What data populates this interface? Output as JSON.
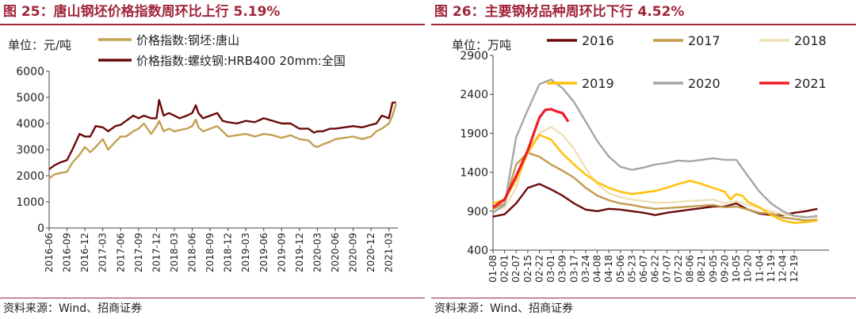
{
  "left_panel": {
    "title": "图 25：唐山钢坯价格指数周环比上行 5.19%",
    "source": "资料来源：Wind、招商证券"
  },
  "right_panel": {
    "title": "图 26：主要钢材品种周环比下行 4.52%",
    "source": "资料来源：Wind、招商证券"
  },
  "colors": {
    "title_red": "#a0263a",
    "billet": "#c3a052",
    "rebar": "#6b0a0a",
    "y2016": "#6b0a0a",
    "y2017": "#c39a4e",
    "y2018": "#efe0b6",
    "y2019": "#ffc20e",
    "y2020": "#a6a6a6",
    "y2021": "#ee1c25"
  },
  "chart_data": [
    {
      "type": "line",
      "unit_label": "单位：元/吨",
      "ylim": [
        0,
        6000
      ],
      "yticks": [
        "0",
        "1000",
        "2000",
        "3000",
        "4000",
        "5000",
        "6000"
      ],
      "xticks": [
        "2016-06",
        "2016-09",
        "2016-12",
        "2017-03",
        "2017-06",
        "2017-09",
        "2017-12",
        "2018-03",
        "2018-06",
        "2018-09",
        "2018-12",
        "2019-03",
        "2019-06",
        "2019-09",
        "2019-12",
        "2020-03",
        "2020-06",
        "2020-09",
        "2020-12",
        "2021-03"
      ],
      "x_range": [
        0,
        19.5
      ],
      "series": [
        {
          "name": "价格指数:钢坯:唐山",
          "color": "#c3a052",
          "x": [
            0,
            0.3,
            0.6,
            1,
            1.3,
            1.7,
            2,
            2.3,
            2.6,
            3,
            3.3,
            3.7,
            4,
            4.3,
            4.7,
            5,
            5.3,
            5.7,
            6,
            6.15,
            6.4,
            6.7,
            7,
            7.3,
            7.7,
            8,
            8.2,
            8.35,
            8.6,
            9,
            9.4,
            9.7,
            10,
            10.5,
            11,
            11.5,
            12,
            12.5,
            13,
            13.5,
            14,
            14.5,
            14.8,
            15,
            15.3,
            15.7,
            16,
            16.5,
            17,
            17.5,
            18,
            18.3,
            18.6,
            19,
            19.2,
            19.4
          ],
          "values": [
            1900,
            2050,
            2100,
            2150,
            2500,
            2800,
            3100,
            2900,
            3100,
            3400,
            3000,
            3300,
            3500,
            3500,
            3700,
            3800,
            4000,
            3600,
            3900,
            4100,
            3700,
            3800,
            3700,
            3750,
            3800,
            3900,
            4150,
            3850,
            3700,
            3800,
            3900,
            3700,
            3500,
            3550,
            3600,
            3500,
            3600,
            3550,
            3450,
            3550,
            3400,
            3350,
            3150,
            3100,
            3200,
            3300,
            3400,
            3450,
            3500,
            3400,
            3500,
            3700,
            3800,
            4000,
            4300,
            4750
          ]
        },
        {
          "name": "价格指数:螺纹钢:HRB400 20mm:全国",
          "color": "#6b0a0a",
          "x": [
            0,
            0.3,
            0.6,
            1,
            1.3,
            1.7,
            2,
            2.3,
            2.6,
            3,
            3.3,
            3.7,
            4,
            4.3,
            4.7,
            5,
            5.3,
            5.7,
            6,
            6.15,
            6.4,
            6.7,
            7,
            7.3,
            7.7,
            8,
            8.2,
            8.35,
            8.6,
            9,
            9.4,
            9.7,
            10,
            10.5,
            11,
            11.5,
            12,
            12.5,
            13,
            13.5,
            14,
            14.5,
            14.8,
            15,
            15.3,
            15.7,
            16,
            16.5,
            17,
            17.5,
            18,
            18.3,
            18.6,
            19,
            19.2,
            19.4
          ],
          "values": [
            2250,
            2400,
            2500,
            2600,
            3000,
            3600,
            3500,
            3500,
            3900,
            3850,
            3700,
            3900,
            3950,
            4100,
            4300,
            4200,
            4300,
            4200,
            4200,
            4900,
            4300,
            4400,
            4300,
            4200,
            4300,
            4400,
            4700,
            4400,
            4200,
            4300,
            4400,
            4100,
            4050,
            4000,
            4100,
            4050,
            4200,
            4100,
            4000,
            4000,
            3800,
            3800,
            3650,
            3700,
            3700,
            3800,
            3800,
            3850,
            3900,
            3850,
            3950,
            4000,
            4300,
            4200,
            4800,
            4800
          ]
        }
      ]
    },
    {
      "type": "line",
      "unit_label": "单位：万吨",
      "ylim": [
        400,
        2900
      ],
      "yticks": [
        "400",
        "900",
        "1400",
        "1900",
        "2400",
        "2900"
      ],
      "xticks": [
        "01-08",
        "02-01",
        "02-07",
        "02-15",
        "02-22",
        "03-01",
        "03-09",
        "03-17",
        "03-24",
        "04-08",
        "04-18",
        "05-06",
        "05-23",
        "06-07",
        "06-22",
        "07-07",
        "07-22",
        "08-06",
        "08-21",
        "09-05",
        "09-20",
        "10-05",
        "10-20",
        "11-04",
        "11-19",
        "12-04",
        "12-19"
      ],
      "x_range": [
        0,
        29
      ],
      "series": [
        {
          "name": "2016",
          "color": "#6b0a0a",
          "x": [
            0,
            1,
            2,
            3,
            4,
            5,
            6,
            7,
            8,
            9,
            10,
            11,
            12,
            13,
            14,
            15,
            16,
            17,
            18,
            19,
            20,
            21,
            22,
            23,
            24,
            25,
            26,
            27,
            28
          ],
          "values": [
            830,
            860,
            1000,
            1200,
            1250,
            1180,
            1100,
            1000,
            920,
            900,
            930,
            920,
            900,
            880,
            850,
            880,
            900,
            920,
            940,
            960,
            960,
            1000,
            920,
            870,
            850,
            850,
            880,
            900,
            930
          ]
        },
        {
          "name": "2017",
          "color": "#c39a4e",
          "x": [
            0,
            1,
            2,
            3,
            4,
            5,
            6,
            7,
            8,
            9,
            10,
            11,
            12,
            13,
            14,
            15,
            16,
            17,
            18,
            19,
            20,
            21,
            22,
            23,
            24,
            25,
            26,
            27,
            28
          ],
          "values": [
            930,
            1000,
            1500,
            1650,
            1600,
            1500,
            1420,
            1330,
            1200,
            1100,
            1040,
            1000,
            980,
            950,
            930,
            940,
            950,
            960,
            970,
            980,
            950,
            960,
            920,
            880,
            870,
            820,
            800,
            780,
            790
          ]
        },
        {
          "name": "2018",
          "color": "#efe0b6",
          "x": [
            0,
            1,
            2,
            3,
            4,
            5,
            6,
            7,
            8,
            9,
            10,
            11,
            12,
            13,
            14,
            15,
            16,
            17,
            18,
            19,
            20,
            21,
            22,
            23,
            24,
            25,
            26,
            27,
            28
          ],
          "values": [
            900,
            950,
            1200,
            1700,
            1900,
            1980,
            1880,
            1700,
            1450,
            1250,
            1130,
            1080,
            1050,
            1030,
            1010,
            1010,
            1020,
            1030,
            1040,
            1050,
            1000,
            1030,
            980,
            940,
            900,
            860,
            840,
            830,
            820
          ]
        },
        {
          "name": "2019",
          "color": "#ffc20e",
          "x": [
            0,
            1,
            2,
            3,
            4,
            5,
            6,
            7,
            8,
            9,
            10,
            11,
            12,
            13,
            14,
            15,
            16,
            17,
            18,
            19,
            20,
            20.5,
            21,
            21.5,
            22,
            23,
            24,
            25,
            26,
            27,
            28
          ],
          "values": [
            1000,
            1050,
            1300,
            1650,
            1880,
            1820,
            1640,
            1500,
            1370,
            1270,
            1200,
            1150,
            1120,
            1140,
            1160,
            1200,
            1250,
            1290,
            1250,
            1200,
            1150,
            1050,
            1120,
            1100,
            1020,
            950,
            850,
            780,
            750,
            760,
            780
          ]
        },
        {
          "name": "2020",
          "color": "#a6a6a6",
          "x": [
            0,
            1,
            2,
            3,
            4,
            5,
            6,
            7,
            8,
            9,
            10,
            11,
            12,
            13,
            14,
            15,
            16,
            17,
            18,
            19,
            20,
            21,
            22,
            23,
            24,
            25,
            26,
            27,
            28
          ],
          "values": [
            880,
            980,
            1850,
            2200,
            2530,
            2590,
            2480,
            2300,
            2050,
            1800,
            1600,
            1470,
            1430,
            1460,
            1500,
            1520,
            1550,
            1540,
            1560,
            1580,
            1560,
            1560,
            1350,
            1150,
            1000,
            900,
            840,
            820,
            840
          ]
        },
        {
          "name": "2021",
          "color": "#ee1c25",
          "x": [
            0,
            1,
            2,
            3,
            4,
            4.5,
            5,
            5.5,
            6,
            6.5
          ],
          "values": [
            950,
            1050,
            1350,
            1680,
            2100,
            2200,
            2210,
            2180,
            2160,
            2050
          ]
        }
      ]
    }
  ]
}
